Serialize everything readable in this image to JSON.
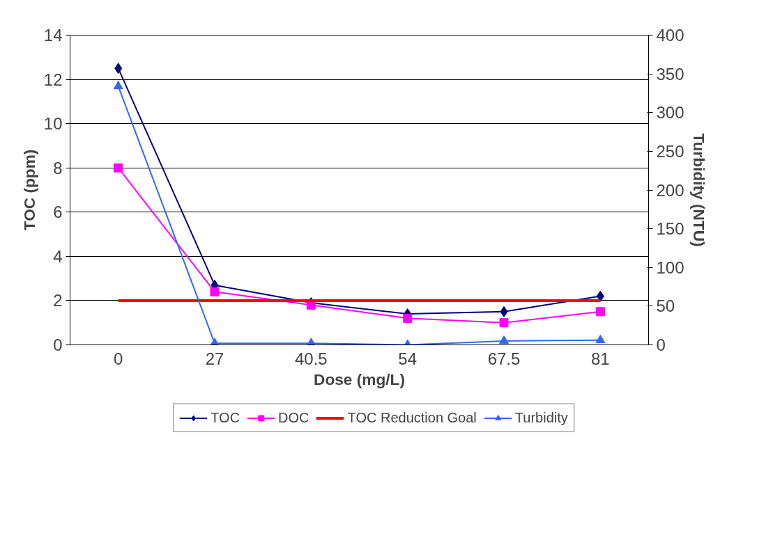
{
  "chart_data": {
    "type": "line",
    "xlabel": "Dose (mg/L)",
    "ylabel": "TOC (ppm)",
    "y2label": "Turbidity (NTU)",
    "categories": [
      "0",
      "27",
      "40.5",
      "54",
      "67.5",
      "81"
    ],
    "ylim": [
      0,
      14
    ],
    "yticks": [
      0,
      2,
      4,
      6,
      8,
      10,
      12,
      14
    ],
    "y2lim": [
      0,
      400
    ],
    "y2ticks": [
      0,
      50,
      100,
      150,
      200,
      250,
      300,
      350,
      400
    ],
    "grid": "y",
    "legend": "bottom",
    "series": [
      {
        "name": "TOC",
        "color": "#000080",
        "marker": "diamond",
        "values": [
          12.5,
          2.7,
          1.9,
          1.4,
          1.5,
          2.2
        ]
      },
      {
        "name": "DOC",
        "color": "#ff00ff",
        "marker": "square",
        "values": [
          8.0,
          2.4,
          1.8,
          1.2,
          1.0,
          1.5
        ]
      },
      {
        "name": "TOC Reduction Goal",
        "color": "#ff0000",
        "marker": "none",
        "values": [
          2,
          2,
          2,
          2,
          2,
          2
        ]
      },
      {
        "name": "Turbidity",
        "color": "#3366ff",
        "marker": "triangle",
        "axis": "y2",
        "values": [
          334,
          2,
          2,
          0,
          5,
          6
        ]
      }
    ]
  }
}
